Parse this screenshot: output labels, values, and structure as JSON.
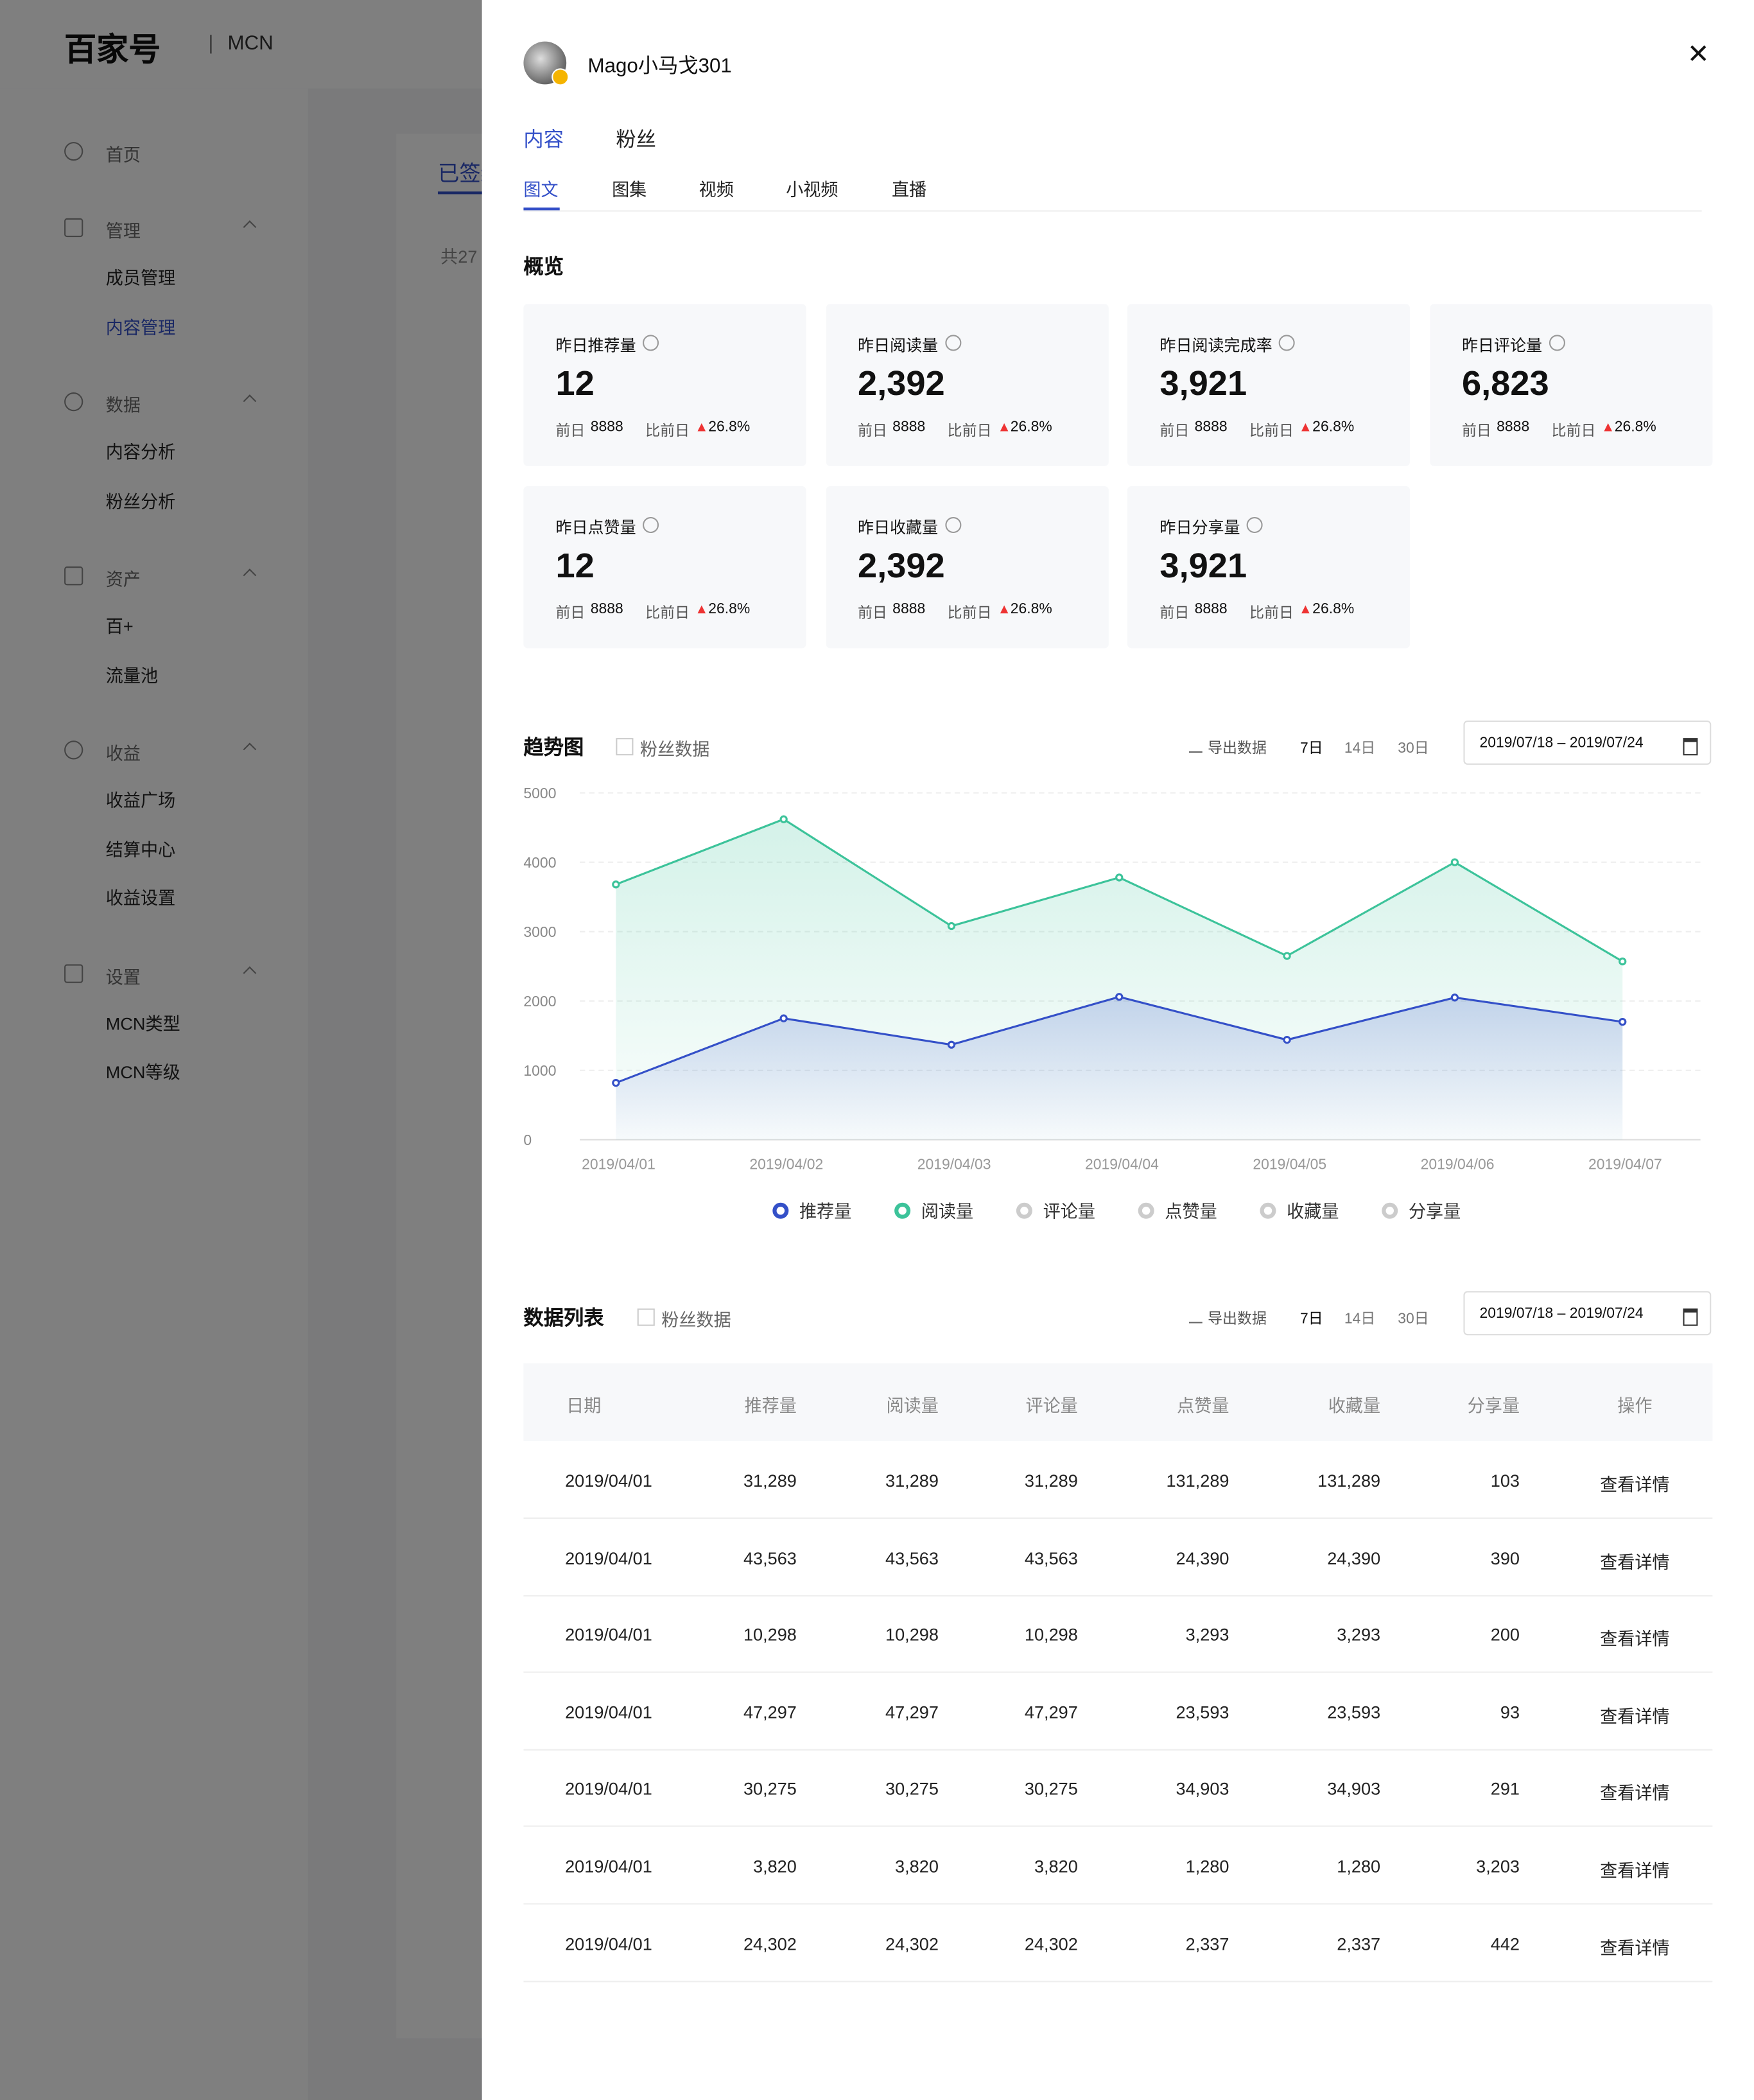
{
  "brand": {
    "logo": "百家号",
    "product": "MCN"
  },
  "sidebar": [
    {
      "label": "首页",
      "items": []
    },
    {
      "label": "管理",
      "items": [
        "成员管理",
        "内容管理"
      ]
    },
    {
      "label": "数据",
      "items": [
        "内容分析",
        "粉丝分析"
      ]
    },
    {
      "label": "资产",
      "items": [
        "百+",
        "流量池"
      ]
    },
    {
      "label": "收益",
      "items": [
        "收益广场",
        "结算中心",
        "收益设置"
      ]
    },
    {
      "label": "设置",
      "items": [
        "MCN类型",
        "MCN等级"
      ]
    }
  ],
  "background": {
    "tab": "已签约",
    "count": "共27"
  },
  "drawer": {
    "user": "Mago小马戈301",
    "tabs": [
      "内容",
      "粉丝"
    ],
    "subtabs": [
      "图文",
      "图集",
      "视频",
      "小视频",
      "直播"
    ],
    "overview_title": "概览",
    "cards": [
      {
        "label": "昨日推荐量",
        "value": "12",
        "prev_label": "前日",
        "prev": "8888",
        "cmp_label": "比前日",
        "cmp": "26.8%"
      },
      {
        "label": "昨日阅读量",
        "value": "2,392",
        "prev_label": "前日",
        "prev": "8888",
        "cmp_label": "比前日",
        "cmp": "26.8%"
      },
      {
        "label": "昨日阅读完成率",
        "value": "3,921",
        "prev_label": "前日",
        "prev": "8888",
        "cmp_label": "比前日",
        "cmp": "26.8%"
      },
      {
        "label": "昨日评论量",
        "value": "6,823",
        "prev_label": "前日",
        "prev": "8888",
        "cmp_label": "比前日",
        "cmp": "26.8%"
      },
      {
        "label": "昨日点赞量",
        "value": "12",
        "prev_label": "前日",
        "prev": "8888",
        "cmp_label": "比前日",
        "cmp": "26.8%"
      },
      {
        "label": "昨日收藏量",
        "value": "2,392",
        "prev_label": "前日",
        "prev": "8888",
        "cmp_label": "比前日",
        "cmp": "26.8%"
      },
      {
        "label": "昨日分享量",
        "value": "3,921",
        "prev_label": "前日",
        "prev": "8888",
        "cmp_label": "比前日",
        "cmp": "26.8%"
      }
    ]
  },
  "trend": {
    "title": "趋势图",
    "checkbox": "粉丝数据",
    "export": "导出数据",
    "ranges": [
      "7日",
      "14日",
      "30日"
    ],
    "date_range": "2019/07/18 – 2019/07/24",
    "inactive_series": [
      "评论量",
      "点赞量",
      "收藏量",
      "分享量"
    ]
  },
  "chart_data": {
    "type": "line",
    "categories": [
      "2019/04/01",
      "2019/04/02",
      "2019/04/03",
      "2019/04/04",
      "2019/04/05",
      "2019/04/06",
      "2019/04/07"
    ],
    "series": [
      {
        "name": "推荐量",
        "color": "#3450c8",
        "values": [
          820,
          1750,
          1370,
          2060,
          1440,
          2050,
          1700
        ]
      },
      {
        "name": "阅读量",
        "color": "#3cc39a",
        "values": [
          3680,
          4620,
          3080,
          3780,
          2650,
          4000,
          2570
        ]
      }
    ],
    "ylim": [
      0,
      5000
    ],
    "yticks": [
      0,
      1000,
      2000,
      3000,
      4000,
      5000
    ],
    "grid": true
  },
  "table": {
    "title": "数据列表",
    "checkbox": "粉丝数据",
    "export": "导出数据",
    "ranges": [
      "7日",
      "14日",
      "30日"
    ],
    "date_range": "2019/07/18 – 2019/07/24",
    "columns": [
      "日期",
      "推荐量",
      "阅读量",
      "评论量",
      "点赞量",
      "收藏量",
      "分享量",
      "操作"
    ],
    "rows": [
      [
        "2019/04/01",
        "31,289",
        "31,289",
        "31,289",
        "131,289",
        "131,289",
        "103",
        "查看详情"
      ],
      [
        "2019/04/01",
        "43,563",
        "43,563",
        "43,563",
        "24,390",
        "24,390",
        "390",
        "查看详情"
      ],
      [
        "2019/04/01",
        "10,298",
        "10,298",
        "10,298",
        "3,293",
        "3,293",
        "200",
        "查看详情"
      ],
      [
        "2019/04/01",
        "47,297",
        "47,297",
        "47,297",
        "23,593",
        "23,593",
        "93",
        "查看详情"
      ],
      [
        "2019/04/01",
        "30,275",
        "30,275",
        "30,275",
        "34,903",
        "34,903",
        "291",
        "查看详情"
      ],
      [
        "2019/04/01",
        "3,820",
        "3,820",
        "3,820",
        "1,280",
        "1,280",
        "3,203",
        "查看详情"
      ],
      [
        "2019/04/01",
        "24,302",
        "24,302",
        "24,302",
        "2,337",
        "2,337",
        "442",
        "查看详情"
      ]
    ]
  }
}
